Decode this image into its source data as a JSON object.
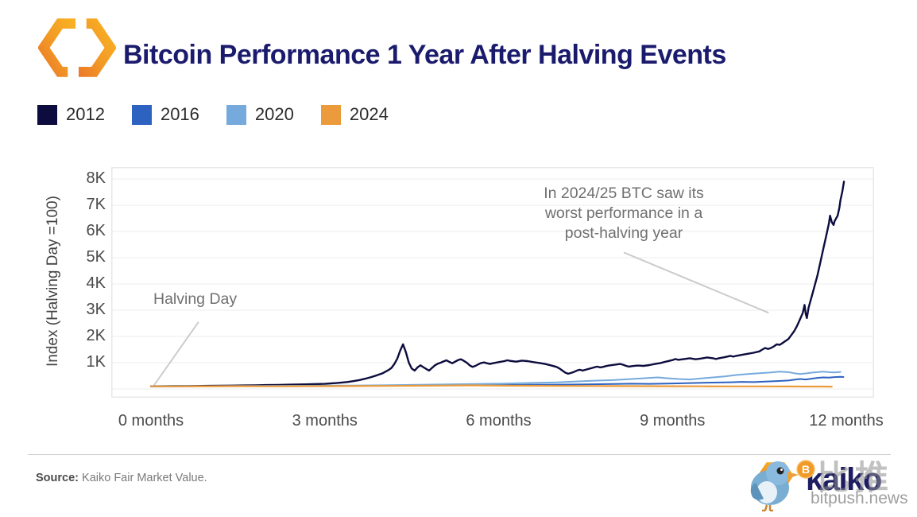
{
  "header": {
    "title": "Bitcoin Performance 1 Year After Halving Events"
  },
  "colors": {
    "title_navy": "#1b1b6e",
    "grid": "#ececec",
    "plot_border": "#e2e2e2",
    "annotation_gray": "#707070",
    "leader_line": "#cccccc"
  },
  "chart_data": {
    "type": "line",
    "title": "Bitcoin Performance 1 Year After Halving Events",
    "ylabel": "Index (Halving Day =100)",
    "xlabel": "",
    "grid": true,
    "legend_position": "top-left",
    "xlim_months": [
      -0.7,
      12.55
    ],
    "ylim": [
      0,
      8500
    ],
    "y_ticks": [
      {
        "label": "8K",
        "value": 8000
      },
      {
        "label": "7K",
        "value": 7000
      },
      {
        "label": "6K",
        "value": 6000
      },
      {
        "label": "5K",
        "value": 5000
      },
      {
        "label": "4K",
        "value": 4000
      },
      {
        "label": "3K",
        "value": 3000
      },
      {
        "label": "2K",
        "value": 2000
      },
      {
        "label": "1K",
        "value": 1000
      }
    ],
    "x_ticks": [
      {
        "label": "0 months",
        "month": 0
      },
      {
        "label": "3 months",
        "month": 3
      },
      {
        "label": "6 months",
        "month": 6
      },
      {
        "label": "9 months",
        "month": 9
      },
      {
        "label": "12 months",
        "month": 12
      }
    ],
    "series": [
      {
        "name": "2012",
        "color": "#0c0c3e",
        "width": 2.4,
        "points": [
          [
            0,
            100
          ],
          [
            0.2,
            103
          ],
          [
            0.4,
            107
          ],
          [
            0.6,
            110
          ],
          [
            0.8,
            112
          ],
          [
            1,
            118
          ],
          [
            1.2,
            122
          ],
          [
            1.4,
            128
          ],
          [
            1.6,
            132
          ],
          [
            1.8,
            140
          ],
          [
            2,
            148
          ],
          [
            2.2,
            155
          ],
          [
            2.4,
            163
          ],
          [
            2.6,
            172
          ],
          [
            2.8,
            182
          ],
          [
            3,
            195
          ],
          [
            3.1,
            210
          ],
          [
            3.2,
            225
          ],
          [
            3.3,
            245
          ],
          [
            3.4,
            268
          ],
          [
            3.5,
            300
          ],
          [
            3.6,
            340
          ],
          [
            3.7,
            390
          ],
          [
            3.8,
            450
          ],
          [
            3.9,
            520
          ],
          [
            4,
            600
          ],
          [
            4.05,
            660
          ],
          [
            4.1,
            720
          ],
          [
            4.15,
            800
          ],
          [
            4.2,
            950
          ],
          [
            4.25,
            1150
          ],
          [
            4.3,
            1450
          ],
          [
            4.35,
            1700
          ],
          [
            4.4,
            1400
          ],
          [
            4.45,
            1000
          ],
          [
            4.5,
            780
          ],
          [
            4.55,
            700
          ],
          [
            4.6,
            820
          ],
          [
            4.65,
            900
          ],
          [
            4.7,
            830
          ],
          [
            4.75,
            760
          ],
          [
            4.8,
            700
          ],
          [
            4.85,
            800
          ],
          [
            4.9,
            900
          ],
          [
            4.95,
            960
          ],
          [
            5,
            1000
          ],
          [
            5.05,
            1050
          ],
          [
            5.1,
            1090
          ],
          [
            5.15,
            1030
          ],
          [
            5.2,
            980
          ],
          [
            5.25,
            1040
          ],
          [
            5.3,
            1100
          ],
          [
            5.35,
            1130
          ],
          [
            5.4,
            1070
          ],
          [
            5.45,
            1000
          ],
          [
            5.5,
            900
          ],
          [
            5.55,
            840
          ],
          [
            5.6,
            880
          ],
          [
            5.65,
            940
          ],
          [
            5.7,
            990
          ],
          [
            5.75,
            1010
          ],
          [
            5.8,
            980
          ],
          [
            5.85,
            950
          ],
          [
            5.9,
            980
          ],
          [
            6,
            1020
          ],
          [
            6.1,
            1060
          ],
          [
            6.15,
            1090
          ],
          [
            6.2,
            1070
          ],
          [
            6.3,
            1040
          ],
          [
            6.4,
            1080
          ],
          [
            6.5,
            1060
          ],
          [
            6.6,
            1020
          ],
          [
            6.7,
            990
          ],
          [
            6.8,
            950
          ],
          [
            6.9,
            900
          ],
          [
            7,
            840
          ],
          [
            7.05,
            780
          ],
          [
            7.1,
            700
          ],
          [
            7.15,
            620
          ],
          [
            7.2,
            580
          ],
          [
            7.25,
            610
          ],
          [
            7.3,
            650
          ],
          [
            7.35,
            700
          ],
          [
            7.4,
            730
          ],
          [
            7.45,
            700
          ],
          [
            7.5,
            730
          ],
          [
            7.55,
            760
          ],
          [
            7.6,
            790
          ],
          [
            7.65,
            820
          ],
          [
            7.7,
            850
          ],
          [
            7.75,
            820
          ],
          [
            7.8,
            840
          ],
          [
            7.85,
            870
          ],
          [
            7.9,
            890
          ],
          [
            8,
            920
          ],
          [
            8.1,
            950
          ],
          [
            8.15,
            920
          ],
          [
            8.2,
            880
          ],
          [
            8.25,
            850
          ],
          [
            8.3,
            870
          ],
          [
            8.4,
            890
          ],
          [
            8.5,
            880
          ],
          [
            8.6,
            910
          ],
          [
            8.7,
            950
          ],
          [
            8.8,
            990
          ],
          [
            8.9,
            1050
          ],
          [
            9,
            1100
          ],
          [
            9.05,
            1140
          ],
          [
            9.1,
            1110
          ],
          [
            9.2,
            1140
          ],
          [
            9.3,
            1170
          ],
          [
            9.4,
            1130
          ],
          [
            9.5,
            1160
          ],
          [
            9.6,
            1200
          ],
          [
            9.7,
            1170
          ],
          [
            9.75,
            1140
          ],
          [
            9.8,
            1170
          ],
          [
            9.9,
            1210
          ],
          [
            10,
            1260
          ],
          [
            10.05,
            1230
          ],
          [
            10.1,
            1260
          ],
          [
            10.2,
            1300
          ],
          [
            10.3,
            1340
          ],
          [
            10.4,
            1380
          ],
          [
            10.5,
            1430
          ],
          [
            10.55,
            1500
          ],
          [
            10.6,
            1560
          ],
          [
            10.65,
            1520
          ],
          [
            10.7,
            1560
          ],
          [
            10.75,
            1620
          ],
          [
            10.8,
            1700
          ],
          [
            10.85,
            1680
          ],
          [
            10.9,
            1750
          ],
          [
            11,
            1900
          ],
          [
            11.05,
            2050
          ],
          [
            11.1,
            2200
          ],
          [
            11.15,
            2400
          ],
          [
            11.2,
            2650
          ],
          [
            11.25,
            2900
          ],
          [
            11.28,
            3200
          ],
          [
            11.3,
            2850
          ],
          [
            11.32,
            2700
          ],
          [
            11.35,
            3100
          ],
          [
            11.4,
            3500
          ],
          [
            11.45,
            3900
          ],
          [
            11.5,
            4300
          ],
          [
            11.55,
            4800
          ],
          [
            11.6,
            5300
          ],
          [
            11.65,
            5800
          ],
          [
            11.7,
            6300
          ],
          [
            11.72,
            6600
          ],
          [
            11.75,
            6350
          ],
          [
            11.78,
            6250
          ],
          [
            11.8,
            6400
          ],
          [
            11.85,
            6600
          ],
          [
            11.88,
            6900
          ],
          [
            11.9,
            7200
          ],
          [
            11.93,
            7500
          ],
          [
            11.96,
            7900
          ]
        ]
      },
      {
        "name": "2016",
        "color": "#2d62c1",
        "width": 2,
        "points": [
          [
            0,
            100
          ],
          [
            0.5,
            102
          ],
          [
            1,
            105
          ],
          [
            1.5,
            108
          ],
          [
            2,
            112
          ],
          [
            2.5,
            110
          ],
          [
            3,
            115
          ],
          [
            3.5,
            120
          ],
          [
            4,
            125
          ],
          [
            4.5,
            130
          ],
          [
            5,
            135
          ],
          [
            5.5,
            140
          ],
          [
            6,
            150
          ],
          [
            6.5,
            158
          ],
          [
            7,
            165
          ],
          [
            7.5,
            175
          ],
          [
            8,
            190
          ],
          [
            8.3,
            200
          ],
          [
            8.6,
            195
          ],
          [
            9,
            210
          ],
          [
            9.3,
            225
          ],
          [
            9.6,
            240
          ],
          [
            10,
            255
          ],
          [
            10.2,
            270
          ],
          [
            10.4,
            260
          ],
          [
            10.6,
            280
          ],
          [
            10.8,
            300
          ],
          [
            11,
            320
          ],
          [
            11.1,
            350
          ],
          [
            11.2,
            380
          ],
          [
            11.3,
            360
          ],
          [
            11.4,
            390
          ],
          [
            11.5,
            420
          ],
          [
            11.6,
            440
          ],
          [
            11.7,
            430
          ],
          [
            11.8,
            450
          ],
          [
            11.9,
            460
          ],
          [
            11.95,
            455
          ]
        ]
      },
      {
        "name": "2020",
        "color": "#76aadd",
        "width": 2,
        "points": [
          [
            0,
            100
          ],
          [
            0.5,
            103
          ],
          [
            1,
            106
          ],
          [
            1.5,
            110
          ],
          [
            2,
            115
          ],
          [
            2.5,
            120
          ],
          [
            3,
            125
          ],
          [
            3.5,
            130
          ],
          [
            4,
            140
          ],
          [
            4.5,
            155
          ],
          [
            5,
            170
          ],
          [
            5.5,
            185
          ],
          [
            6,
            200
          ],
          [
            6.3,
            215
          ],
          [
            6.6,
            230
          ],
          [
            7,
            250
          ],
          [
            7.3,
            280
          ],
          [
            7.6,
            310
          ],
          [
            8,
            340
          ],
          [
            8.3,
            380
          ],
          [
            8.6,
            420
          ],
          [
            8.75,
            440
          ],
          [
            8.9,
            410
          ],
          [
            9.1,
            380
          ],
          [
            9.3,
            360
          ],
          [
            9.5,
            400
          ],
          [
            9.7,
            440
          ],
          [
            9.9,
            480
          ],
          [
            10.1,
            530
          ],
          [
            10.3,
            570
          ],
          [
            10.5,
            600
          ],
          [
            10.7,
            630
          ],
          [
            10.85,
            660
          ],
          [
            11,
            640
          ],
          [
            11.1,
            600
          ],
          [
            11.2,
            570
          ],
          [
            11.3,
            590
          ],
          [
            11.4,
            620
          ],
          [
            11.5,
            640
          ],
          [
            11.6,
            660
          ],
          [
            11.7,
            640
          ],
          [
            11.8,
            630
          ],
          [
            11.9,
            650
          ]
        ]
      },
      {
        "name": "2024",
        "color": "#eb9b3b",
        "width": 2.2,
        "points": [
          [
            0,
            100
          ],
          [
            0.5,
            98
          ],
          [
            1,
            102
          ],
          [
            1.5,
            105
          ],
          [
            2,
            100
          ],
          [
            2.5,
            103
          ],
          [
            3,
            106
          ],
          [
            3.5,
            110
          ],
          [
            4,
            115
          ],
          [
            4.5,
            120
          ],
          [
            5,
            128
          ],
          [
            5.5,
            135
          ],
          [
            6,
            128
          ],
          [
            6.5,
            120
          ],
          [
            7,
            115
          ],
          [
            7.5,
            112
          ],
          [
            8,
            108
          ],
          [
            8.5,
            105
          ],
          [
            9,
            102
          ],
          [
            9.5,
            100
          ],
          [
            10,
            98
          ],
          [
            10.5,
            96
          ],
          [
            11,
            95
          ],
          [
            11.3,
            92
          ],
          [
            11.6,
            90
          ],
          [
            11.75,
            88
          ]
        ]
      }
    ],
    "annotations": [
      {
        "id": "halving-day",
        "text": "Halving Day",
        "leader": {
          "from": [
            0.82,
            2550
          ],
          "to": [
            0.05,
            130
          ]
        }
      },
      {
        "id": "worst-performance",
        "lines": [
          "In 2024/25 BTC saw its",
          "worst performance in a",
          "post-halving year"
        ],
        "leader": {
          "from": [
            8.16,
            5200
          ],
          "to": [
            10.66,
            2900
          ]
        }
      }
    ]
  },
  "footer": {
    "source_label": "Source:",
    "source_text": " Kaiko Fair Market Value.",
    "watermark": {
      "brand": "kaiko",
      "site": "bitpush.news",
      "cjk": "比推",
      "btc_symbol": "B"
    }
  }
}
